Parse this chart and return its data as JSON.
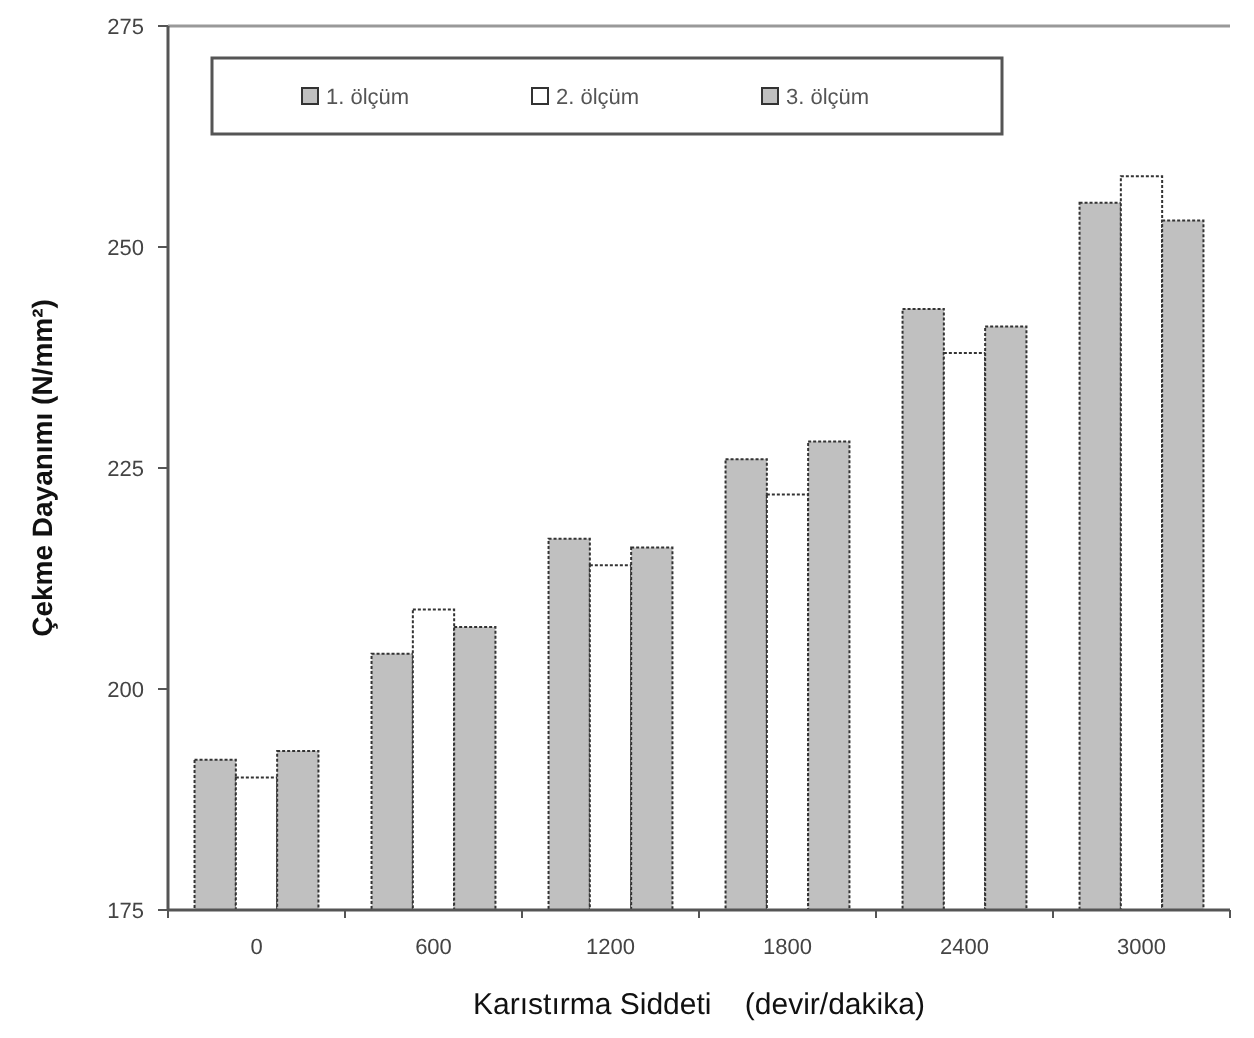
{
  "chart_data": {
    "type": "bar",
    "xlabel": "Karıstırma Siddeti    (devir/dakika)",
    "ylabel": "Çekme Dayanımı (N/mm²)",
    "categories": [
      "0",
      "600",
      "1200",
      "1800",
      "2400",
      "3000"
    ],
    "series": [
      {
        "name": "1. ölçüm",
        "color": "#c0c0c0",
        "values": [
          192,
          204,
          217,
          226,
          243,
          255
        ]
      },
      {
        "name": "2. ölçüm",
        "color": "#ffffff",
        "values": [
          190,
          209,
          214,
          222,
          238,
          258
        ]
      },
      {
        "name": "3. ölçüm",
        "color": "#c0c0c0",
        "values": [
          193,
          207,
          216,
          228,
          241,
          253
        ]
      }
    ],
    "ylim": [
      175,
      275
    ],
    "yticks": [
      175,
      200,
      225,
      250,
      275
    ],
    "legend": "top",
    "grid": false
  }
}
